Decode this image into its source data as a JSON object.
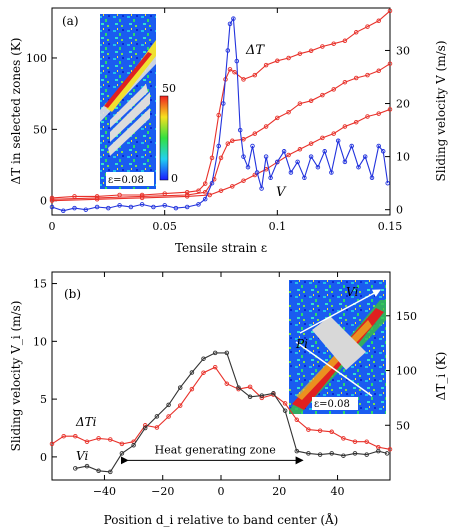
{
  "chart_data": [
    {
      "panel_label": "(a)",
      "type": "line",
      "xlabel": "Tensile strain ε",
      "ylabel_left": "ΔT in selected zones (K)",
      "ylabel_right": "Sliding velocity V (m/s)",
      "xlim": [
        0,
        0.15
      ],
      "ylim_left": [
        -10,
        135
      ],
      "ylim_right": [
        -1,
        38
      ],
      "x_ticks": [
        "0",
        "0.05",
        "0.1",
        "0.15"
      ],
      "y_left_ticks": [
        "0",
        "50",
        "100"
      ],
      "y_right_ticks": [
        "0",
        "10",
        "20",
        "30"
      ],
      "annotations": {
        "series_dT": "ΔT",
        "series_V": "V"
      },
      "colors": {
        "dT": "#e8312a",
        "V": "#2233dd"
      },
      "series": [
        {
          "name": "ΔT",
          "axis": "left",
          "color": "#e8312a",
          "points": [
            [
              0,
              2
            ],
            [
              0.01,
              3
            ],
            [
              0.02,
              3
            ],
            [
              0.03,
              4
            ],
            [
              0.04,
              4
            ],
            [
              0.05,
              5
            ],
            [
              0.06,
              6
            ],
            [
              0.065,
              7
            ],
            [
              0.068,
              12
            ],
            [
              0.071,
              30
            ],
            [
              0.074,
              60
            ],
            [
              0.077,
              85
            ],
            [
              0.079,
              92
            ],
            [
              0.081,
              90
            ],
            [
              0.085,
              85
            ],
            [
              0.09,
              88
            ],
            [
              0.095,
              95
            ],
            [
              0.1,
              98
            ],
            [
              0.105,
              100
            ],
            [
              0.11,
              103
            ],
            [
              0.115,
              105
            ],
            [
              0.12,
              108
            ],
            [
              0.125,
              110
            ],
            [
              0.13,
              112
            ],
            [
              0.135,
              118
            ],
            [
              0.14,
              122
            ],
            [
              0.145,
              126
            ],
            [
              0.15,
              133
            ]
          ]
        },
        {
          "name": "",
          "axis": "left",
          "color": "#e8312a",
          "points": [
            [
              0,
              1
            ],
            [
              0.02,
              2
            ],
            [
              0.04,
              3
            ],
            [
              0.06,
              4
            ],
            [
              0.068,
              6
            ],
            [
              0.072,
              15
            ],
            [
              0.075,
              30
            ],
            [
              0.078,
              40
            ],
            [
              0.08,
              42
            ],
            [
              0.085,
              43
            ],
            [
              0.09,
              47
            ],
            [
              0.095,
              52
            ],
            [
              0.1,
              58
            ],
            [
              0.105,
              62
            ],
            [
              0.11,
              68
            ],
            [
              0.115,
              70
            ],
            [
              0.12,
              74
            ],
            [
              0.125,
              78
            ],
            [
              0.13,
              83
            ],
            [
              0.135,
              86
            ],
            [
              0.14,
              88
            ],
            [
              0.145,
              91
            ],
            [
              0.15,
              96
            ]
          ]
        },
        {
          "name": "",
          "axis": "left",
          "color": "#e8312a",
          "points": [
            [
              0,
              0
            ],
            [
              0.02,
              1
            ],
            [
              0.04,
              2
            ],
            [
              0.06,
              3
            ],
            [
              0.07,
              4
            ],
            [
              0.075,
              7
            ],
            [
              0.08,
              10
            ],
            [
              0.085,
              14
            ],
            [
              0.09,
              18
            ],
            [
              0.095,
              22
            ],
            [
              0.1,
              27
            ],
            [
              0.105,
              32
            ],
            [
              0.11,
              36
            ],
            [
              0.115,
              40
            ],
            [
              0.12,
              44
            ],
            [
              0.125,
              47
            ],
            [
              0.13,
              52
            ],
            [
              0.135,
              55
            ],
            [
              0.14,
              59
            ],
            [
              0.145,
              61
            ],
            [
              0.15,
              64
            ]
          ]
        },
        {
          "name": "V",
          "axis": "right",
          "color": "#2233dd",
          "points": [
            [
              0,
              0.5
            ],
            [
              0.005,
              -0.2
            ],
            [
              0.01,
              0.3
            ],
            [
              0.015,
              0
            ],
            [
              0.02,
              0.5
            ],
            [
              0.025,
              0.3
            ],
            [
              0.03,
              0.8
            ],
            [
              0.035,
              0.5
            ],
            [
              0.04,
              1
            ],
            [
              0.045,
              0.5
            ],
            [
              0.05,
              0.8
            ],
            [
              0.055,
              0.3
            ],
            [
              0.06,
              0.5
            ],
            [
              0.065,
              1
            ],
            [
              0.068,
              2
            ],
            [
              0.071,
              5
            ],
            [
              0.074,
              12
            ],
            [
              0.076,
              20
            ],
            [
              0.078,
              30
            ],
            [
              0.079,
              35
            ],
            [
              0.0805,
              36
            ],
            [
              0.082,
              28
            ],
            [
              0.0835,
              15
            ],
            [
              0.085,
              10
            ],
            [
              0.087,
              8
            ],
            [
              0.089,
              12
            ],
            [
              0.091,
              7
            ],
            [
              0.093,
              4
            ],
            [
              0.095,
              10
            ],
            [
              0.097,
              6
            ],
            [
              0.1,
              9
            ],
            [
              0.103,
              11
            ],
            [
              0.106,
              7
            ],
            [
              0.109,
              9
            ],
            [
              0.112,
              6
            ],
            [
              0.115,
              10
            ],
            [
              0.118,
              8
            ],
            [
              0.121,
              11
            ],
            [
              0.124,
              7
            ],
            [
              0.127,
              13
            ],
            [
              0.13,
              9
            ],
            [
              0.133,
              12
            ],
            [
              0.136,
              8
            ],
            [
              0.139,
              10
            ],
            [
              0.142,
              6
            ],
            [
              0.145,
              12
            ],
            [
              0.147,
              11
            ],
            [
              0.149,
              5
            ]
          ]
        }
      ],
      "inset": {
        "label": "ε=0.08",
        "colorbar_ticks": [
          "50",
          "0"
        ]
      }
    },
    {
      "panel_label": "(b)",
      "type": "line",
      "xlabel": "Position d_i relative to band center (Å)",
      "ylabel_left": "Sliding velocity V_i (m/s)",
      "ylabel_right": "ΔT_i (K)",
      "xlim": [
        -58,
        58
      ],
      "ylim_left": [
        -2,
        16
      ],
      "ylim_right": [
        0,
        190
      ],
      "x_ticks": [
        "−40",
        "−20",
        "0",
        "20",
        "40"
      ],
      "y_left_ticks": [
        "0",
        "5",
        "10",
        "15"
      ],
      "y_right_ticks": [
        "50",
        "100",
        "150"
      ],
      "annotations": {
        "series_dTi": "ΔTi",
        "series_Vi": "Vi",
        "zone": "Heat generating zone"
      },
      "colors": {
        "dTi": "#e8312a",
        "Vi": "#333333"
      },
      "series": [
        {
          "name": "ΔTi",
          "axis": "right",
          "color": "#e8312a",
          "points": [
            [
              -58,
              33
            ],
            [
              -54,
              40
            ],
            [
              -50,
              40
            ],
            [
              -46,
              35
            ],
            [
              -42,
              38
            ],
            [
              -38,
              37
            ],
            [
              -34,
              33
            ],
            [
              -30,
              35
            ],
            [
              -26,
              50
            ],
            [
              -22,
              48
            ],
            [
              -18,
              58
            ],
            [
              -14,
              68
            ],
            [
              -10,
              83
            ],
            [
              -6,
              98
            ],
            [
              -2,
              103
            ],
            [
              2,
              88
            ],
            [
              6,
              83
            ],
            [
              10,
              85
            ],
            [
              14,
              75
            ],
            [
              18,
              78
            ],
            [
              22,
              70
            ],
            [
              26,
              55
            ],
            [
              30,
              46
            ],
            [
              34,
              45
            ],
            [
              38,
              44
            ],
            [
              42,
              38
            ],
            [
              46,
              35
            ],
            [
              50,
              35
            ],
            [
              54,
              30
            ],
            [
              58,
              28
            ]
          ]
        },
        {
          "name": "Vi",
          "axis": "left",
          "color": "#333333",
          "points": [
            [
              -50,
              -1
            ],
            [
              -46,
              -0.8
            ],
            [
              -42,
              -1.2
            ],
            [
              -38,
              -1.3
            ],
            [
              -34,
              0.3
            ],
            [
              -30,
              1
            ],
            [
              -26,
              2.5
            ],
            [
              -22,
              3.5
            ],
            [
              -18,
              4.5
            ],
            [
              -14,
              6
            ],
            [
              -10,
              7.3
            ],
            [
              -6,
              8.5
            ],
            [
              -2,
              9
            ],
            [
              2,
              9
            ],
            [
              6,
              6
            ],
            [
              10,
              5.2
            ],
            [
              14,
              5.3
            ],
            [
              18,
              5.5
            ],
            [
              22,
              4
            ],
            [
              26,
              0.5
            ],
            [
              30,
              0.3
            ],
            [
              34,
              0.2
            ],
            [
              38,
              0.3
            ],
            [
              42,
              0.1
            ],
            [
              46,
              0.3
            ],
            [
              50,
              0.2
            ],
            [
              54,
              0.5
            ],
            [
              57,
              0.3
            ]
          ]
        }
      ],
      "zone_range": [
        -32,
        28
      ],
      "inset": {
        "label": "ε=0.08",
        "v_label": "Vi",
        "p_label": "Pi"
      }
    }
  ]
}
